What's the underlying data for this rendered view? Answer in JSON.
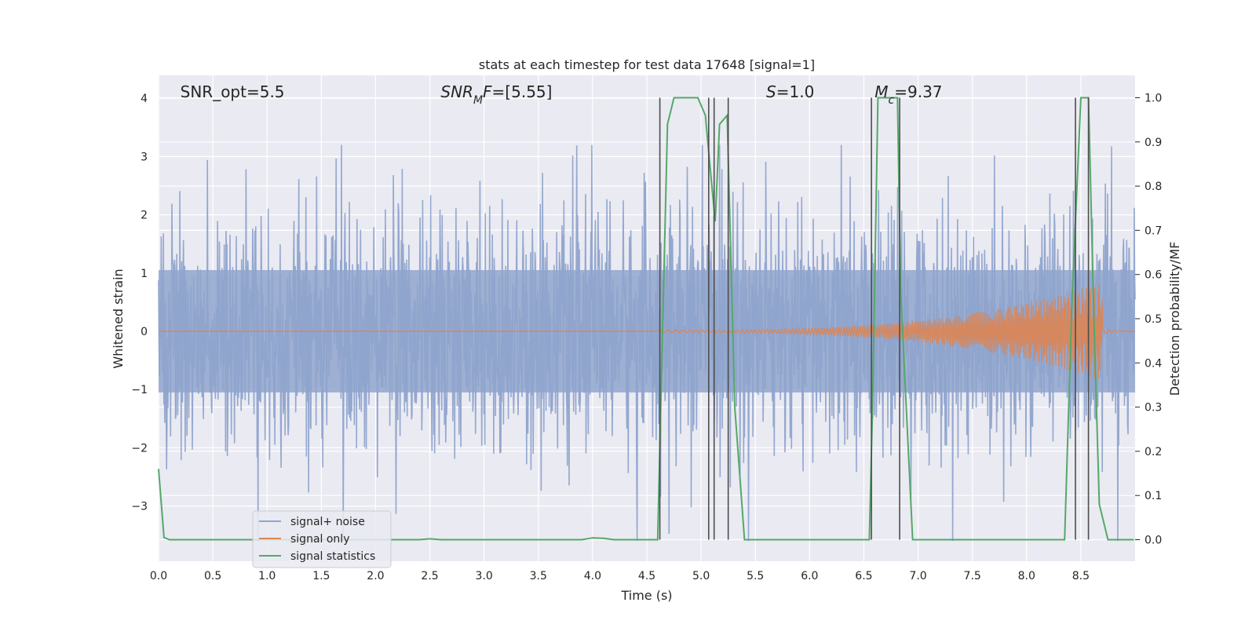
{
  "chart_data": {
    "type": "line",
    "title": "stats at each timestep for test data 17648 [signal=1]",
    "xlabel": "Time (s)",
    "ylabel": "Whitened strain",
    "ylabel_right": "Detection probability/MF",
    "xlim": [
      0.0,
      9.0
    ],
    "ylim": [
      -3.9,
      4.35
    ],
    "ylim_right": [
      -0.05,
      1.045
    ],
    "grid": true,
    "legend_position": "lower-left",
    "x_ticks": [
      "0.0",
      "0.5",
      "1.0",
      "1.5",
      "2.0",
      "2.5",
      "3.0",
      "3.5",
      "4.0",
      "4.5",
      "5.0",
      "5.5",
      "6.0",
      "6.5",
      "7.0",
      "7.5",
      "8.0",
      "8.5"
    ],
    "y_ticks": [
      "−3",
      "−2",
      "−1",
      "0",
      "1",
      "2",
      "3",
      "4"
    ],
    "y_ticks_right": [
      "0.0",
      "0.1",
      "0.2",
      "0.3",
      "0.4",
      "0.5",
      "0.6",
      "0.7",
      "0.8",
      "0.9",
      "1.0"
    ],
    "annotations": [
      {
        "parts": [
          {
            "text": "SNR_opt=5.5",
            "italic": false
          }
        ],
        "x": 0.2
      },
      {
        "parts": [
          {
            "text": "SNR",
            "italic": true
          },
          {
            "text": "M",
            "italic": true,
            "sub": true
          },
          {
            "text": "F",
            "italic": true
          },
          {
            "text": "=[5.55]",
            "italic": false
          }
        ],
        "x": 2.6
      },
      {
        "parts": [
          {
            "text": "S",
            "italic": true
          },
          {
            "text": "=1.0",
            "italic": false
          }
        ],
        "x": 5.6
      },
      {
        "parts": [
          {
            "text": "M",
            "italic": true
          },
          {
            "text": "c",
            "italic": true,
            "sub": true
          },
          {
            "text": "=9.37",
            "italic": false
          }
        ],
        "x": 6.6
      }
    ],
    "series": [
      {
        "name": "signal+ noise",
        "color": "#8fa4cc",
        "note": "whitened strain, noise amplitude ~1.2 sigma, peaks to ~3.2 / -3.6"
      },
      {
        "name": "signal only",
        "color": "#dd8452",
        "chirp": {
          "start": 4.6,
          "peak": 8.65,
          "peak_amp": 0.8,
          "end_amp": 0.05
        }
      },
      {
        "name": "signal statistics",
        "color": "#55a868",
        "axis": "right",
        "x": [
          0.0,
          0.05,
          0.1,
          2.4,
          2.5,
          2.6,
          3.9,
          4.0,
          4.1,
          4.2,
          4.6,
          4.63,
          4.69,
          4.75,
          4.97,
          5.04,
          5.08,
          5.13,
          5.17,
          5.24,
          5.31,
          5.4,
          6.55,
          6.58,
          6.63,
          6.81,
          6.84,
          6.95,
          8.35,
          8.42,
          8.5,
          8.57,
          8.62,
          8.67,
          8.75,
          8.99
        ],
        "y": [
          0.16,
          0.005,
          0.0,
          0.0,
          0.002,
          0.0,
          0.0,
          0.004,
          0.003,
          0.0,
          0.0,
          0.32,
          0.94,
          1.0,
          1.0,
          0.96,
          0.85,
          0.72,
          0.94,
          0.96,
          0.3,
          0.0,
          0.0,
          0.3,
          1.0,
          1.0,
          0.56,
          0.0,
          0.0,
          0.55,
          1.0,
          1.0,
          0.5,
          0.08,
          0.0,
          0.0
        ]
      }
    ],
    "vertical_lines": [
      4.62,
      5.07,
      5.12,
      5.25,
      6.57,
      6.83,
      8.45,
      8.57
    ],
    "vertical_line_color": "#4d4d4d"
  }
}
